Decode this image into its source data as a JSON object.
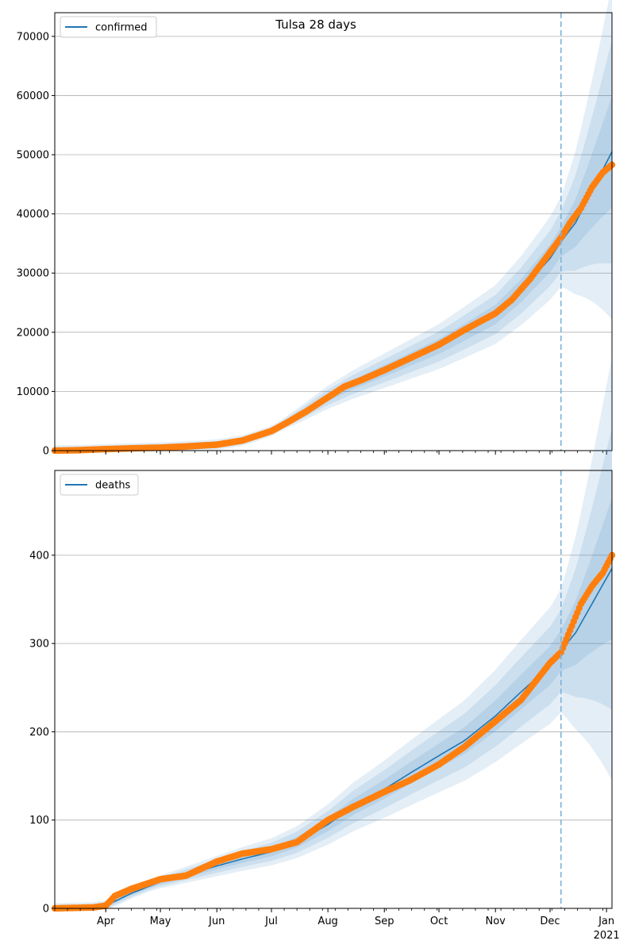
{
  "title": "Tulsa 28 days",
  "colors": {
    "model": "#1f77b4",
    "observed": "#ff7f0e",
    "band": "#1f77b4",
    "forecast_line": "#7fb2d8",
    "grid": "#b0b0b0"
  },
  "x_axis": {
    "tick_labels": [
      "Apr",
      "May",
      "Jun",
      "Jul",
      "Aug",
      "Sep",
      "Oct",
      "Nov",
      "Dec",
      "Jan"
    ],
    "tick_dates": [
      "2020-04-01",
      "2020-05-01",
      "2020-06-01",
      "2020-07-01",
      "2020-08-01",
      "2020-09-01",
      "2020-10-01",
      "2020-11-01",
      "2020-12-01",
      "2021-01-01"
    ],
    "year_label": "2021",
    "range": [
      "2020-03-04",
      "2021-01-04"
    ],
    "forecast_start": "2020-12-07"
  },
  "chart_data": [
    {
      "type": "line",
      "legend": "confirmed",
      "legend_position": "top-left",
      "grid": "horizontal",
      "ylim": [
        0,
        74000
      ],
      "yticks": [
        0,
        10000,
        20000,
        30000,
        40000,
        50000,
        60000,
        70000
      ],
      "series": [
        {
          "name": "confirmed",
          "kind": "model",
          "x": [
            "2020-03-04",
            "2020-03-15",
            "2020-04-01",
            "2020-04-15",
            "2020-05-01",
            "2020-05-15",
            "2020-06-01",
            "2020-06-15",
            "2020-07-01",
            "2020-07-15",
            "2020-08-01",
            "2020-08-15",
            "2020-09-01",
            "2020-09-15",
            "2020-10-01",
            "2020-10-15",
            "2020-11-01",
            "2020-11-15",
            "2020-12-01",
            "2020-12-07",
            "2020-12-15",
            "2021-01-04"
          ],
          "y": [
            0,
            50,
            200,
            350,
            500,
            700,
            1000,
            1700,
            3300,
            5800,
            9000,
            11200,
            13500,
            15400,
            17600,
            20000,
            23000,
            27000,
            32500,
            35300,
            38500,
            50500
          ]
        },
        {
          "name": "observed",
          "kind": "points",
          "x": [
            "2020-03-04",
            "2020-03-15",
            "2020-04-01",
            "2020-04-15",
            "2020-05-01",
            "2020-05-15",
            "2020-06-01",
            "2020-06-15",
            "2020-07-01",
            "2020-07-10",
            "2020-07-20",
            "2020-08-01",
            "2020-08-10",
            "2020-08-20",
            "2020-09-01",
            "2020-09-15",
            "2020-10-01",
            "2020-10-15",
            "2020-11-01",
            "2020-11-10",
            "2020-11-20",
            "2020-12-01",
            "2020-12-07",
            "2020-12-12",
            "2020-12-18",
            "2020-12-24",
            "2020-12-30",
            "2021-01-04"
          ],
          "y": [
            0,
            50,
            250,
            380,
            500,
            700,
            1000,
            1700,
            3300,
            4800,
            6600,
            9000,
            10800,
            12000,
            13600,
            15600,
            17900,
            20400,
            23200,
            25500,
            29000,
            33500,
            36000,
            38500,
            41000,
            44500,
            47000,
            48300
          ]
        }
      ]
    },
    {
      "type": "line",
      "legend": "deaths",
      "legend_position": "top-left",
      "grid": "horizontal",
      "ylim": [
        0,
        496
      ],
      "yticks": [
        0,
        100,
        200,
        300,
        400
      ],
      "series": [
        {
          "name": "deaths",
          "kind": "model",
          "x": [
            "2020-03-04",
            "2020-03-25",
            "2020-04-01",
            "2020-04-15",
            "2020-05-01",
            "2020-05-15",
            "2020-06-01",
            "2020-06-15",
            "2020-07-01",
            "2020-07-15",
            "2020-08-01",
            "2020-08-15",
            "2020-09-01",
            "2020-09-15",
            "2020-10-01",
            "2020-10-15",
            "2020-11-01",
            "2020-11-15",
            "2020-12-01",
            "2020-12-07",
            "2020-12-15",
            "2021-01-04"
          ],
          "y": [
            0,
            1,
            3,
            17,
            30,
            38,
            48,
            56,
            64,
            75,
            95,
            115,
            135,
            153,
            173,
            190,
            218,
            245,
            275,
            292,
            312,
            385
          ]
        },
        {
          "name": "observed",
          "kind": "points",
          "x": [
            "2020-03-04",
            "2020-03-25",
            "2020-04-01",
            "2020-04-06",
            "2020-04-15",
            "2020-05-01",
            "2020-05-15",
            "2020-06-01",
            "2020-06-15",
            "2020-07-01",
            "2020-07-15",
            "2020-08-01",
            "2020-08-15",
            "2020-09-01",
            "2020-09-15",
            "2020-10-01",
            "2020-10-15",
            "2020-11-01",
            "2020-11-15",
            "2020-12-01",
            "2020-12-07",
            "2020-12-12",
            "2020-12-18",
            "2020-12-24",
            "2020-12-30",
            "2021-01-04"
          ],
          "y": [
            0,
            1,
            3,
            14,
            22,
            33,
            37,
            53,
            62,
            67,
            75,
            100,
            115,
            132,
            145,
            163,
            183,
            212,
            236,
            278,
            290,
            315,
            345,
            365,
            380,
            400
          ]
        }
      ]
    }
  ]
}
